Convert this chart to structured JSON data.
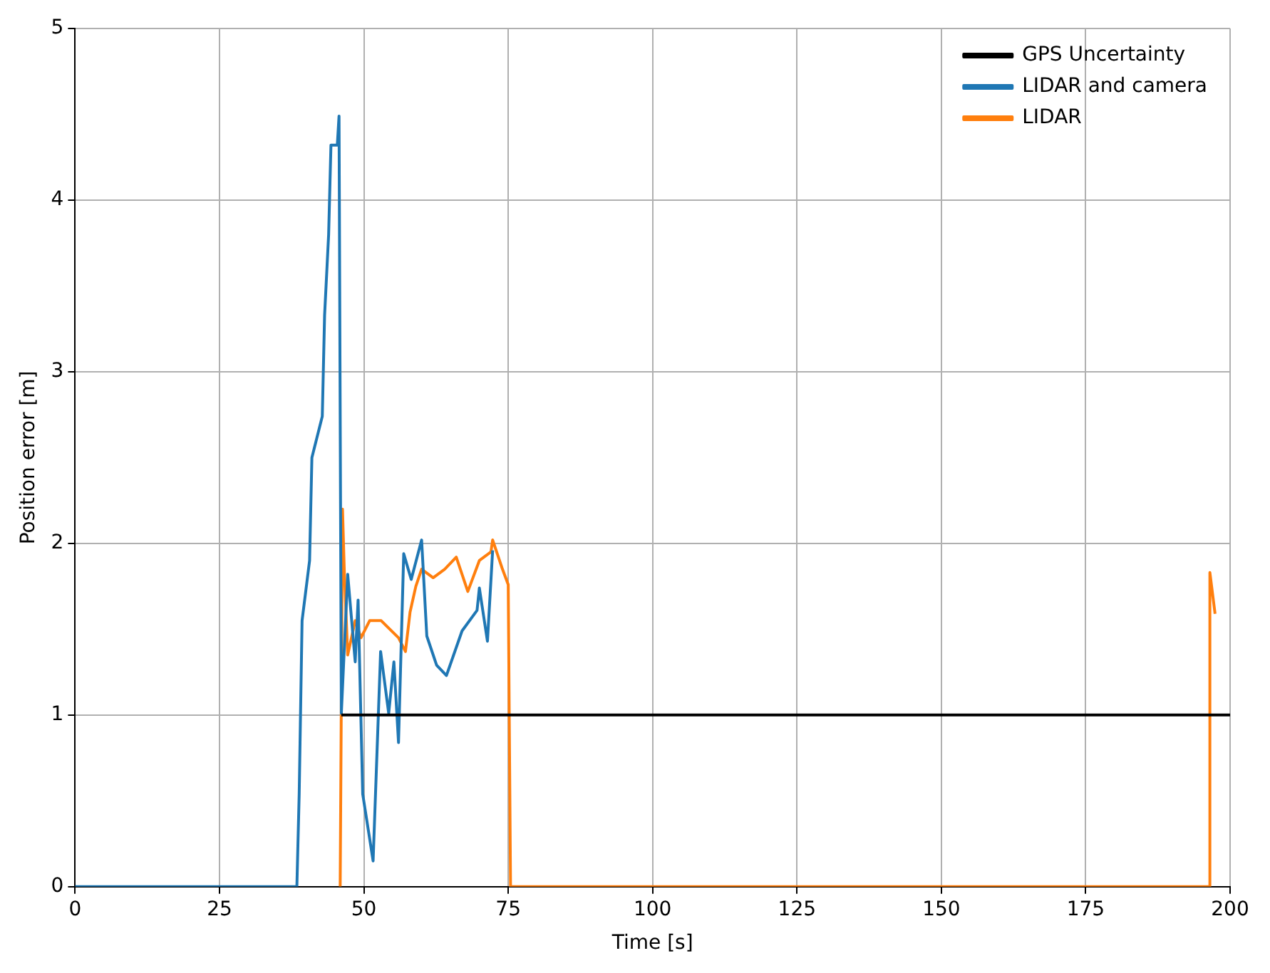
{
  "chart_data": {
    "type": "line",
    "xlabel": "Time [s]",
    "ylabel": "Position error [m]",
    "xlim": [
      0,
      200
    ],
    "ylim": [
      0,
      5
    ],
    "xticks": [
      0,
      25,
      50,
      75,
      100,
      125,
      150,
      175,
      200
    ],
    "yticks": [
      0,
      1,
      2,
      3,
      4,
      5
    ],
    "grid": true,
    "legend": "top right",
    "marker": "none",
    "line_style": "solid",
    "series": [
      {
        "name": "GPS Uncertainty",
        "color": "#000000",
        "x": [
          46.1,
          200
        ],
        "values": [
          1,
          1
        ]
      },
      {
        "name": "LIDAR and camera",
        "color": "#1f77b4",
        "x": [
          0,
          38.4,
          38.8,
          39.3,
          40.6,
          41.0,
          42.8,
          43.2,
          43.9,
          44.3,
          45.4,
          45.7,
          46.1,
          47.2,
          48.5,
          49.0,
          49.8,
          51.6,
          52.9,
          54.3,
          55.2,
          56.0,
          56.9,
          58.2,
          60.0,
          60.9,
          62.6,
          64.3,
          67.0,
          69.6,
          70.0,
          71.4,
          72.3
        ],
        "values": [
          0,
          0,
          0.54,
          1.55,
          1.9,
          2.5,
          2.74,
          3.33,
          3.8,
          4.32,
          4.32,
          4.49,
          1.01,
          1.82,
          1.31,
          1.67,
          0.54,
          0.15,
          1.37,
          1.01,
          1.31,
          0.84,
          1.94,
          1.79,
          2.02,
          1.46,
          1.29,
          1.23,
          1.49,
          1.61,
          1.74,
          1.43,
          1.96
        ]
      },
      {
        "name": "LIDAR",
        "color": "#ff7f0e",
        "x": [
          45.9,
          45.9,
          46.3,
          46.6,
          47.2,
          48.5,
          49.5,
          51.0,
          53.0,
          54.5,
          56.0,
          57.2,
          58.0,
          59.0,
          60.0,
          62.0,
          64.0,
          66.0,
          68.0,
          70.0,
          72.0,
          72.3,
          74.0,
          75.0,
          75.4,
          196.5,
          196.5,
          197.4
        ],
        "values": [
          0,
          0,
          2.2,
          1.85,
          1.35,
          1.55,
          1.45,
          1.55,
          1.55,
          1.5,
          1.45,
          1.37,
          1.6,
          1.75,
          1.85,
          1.8,
          1.85,
          1.92,
          1.72,
          1.9,
          1.95,
          2.02,
          1.85,
          1.76,
          0,
          0,
          1.83,
          1.59
        ]
      }
    ]
  }
}
